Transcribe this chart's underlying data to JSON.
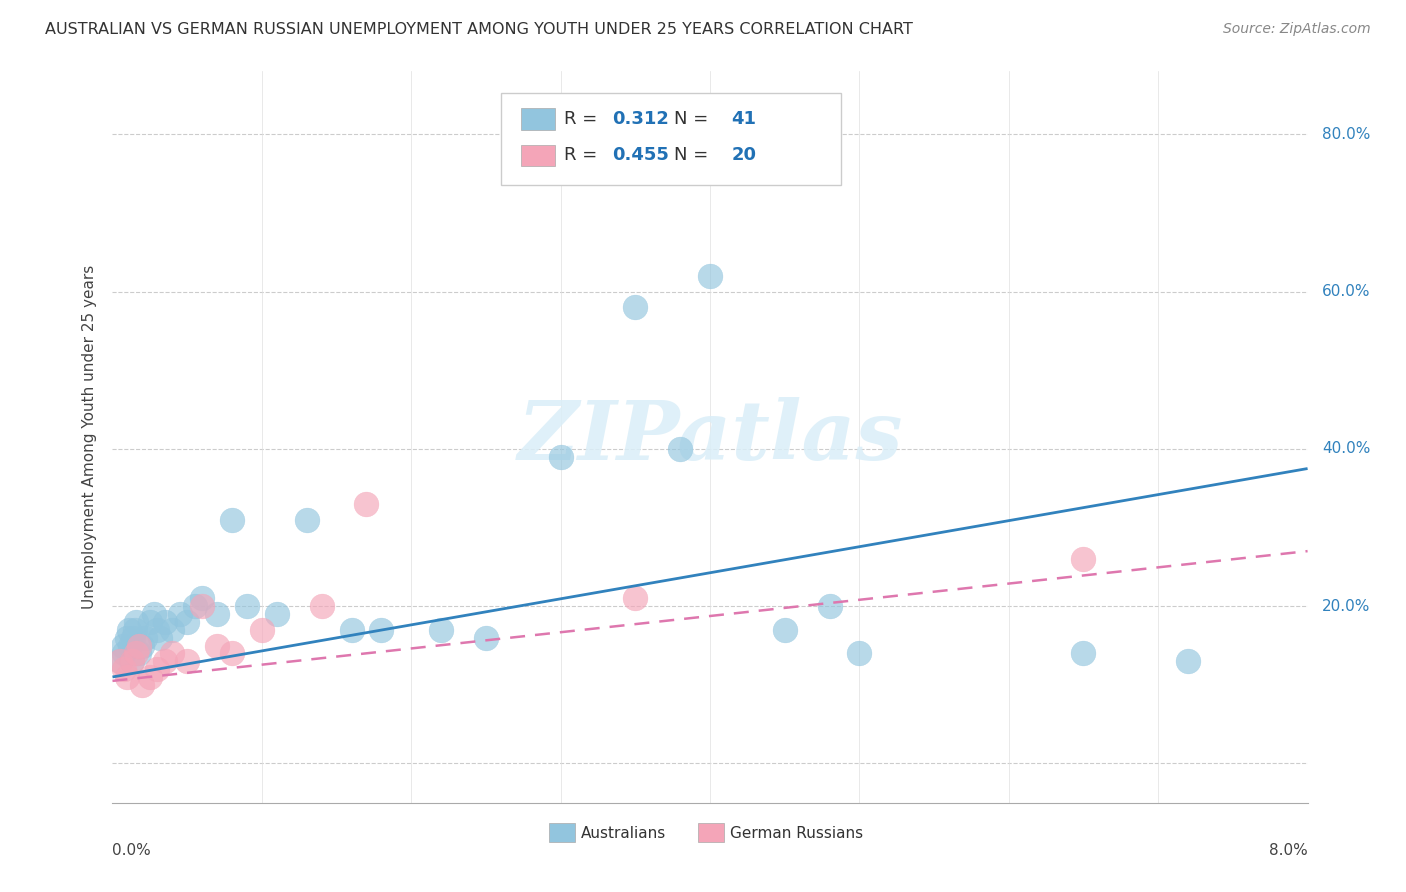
{
  "title": "AUSTRALIAN VS GERMAN RUSSIAN UNEMPLOYMENT AMONG YOUTH UNDER 25 YEARS CORRELATION CHART",
  "source": "Source: ZipAtlas.com",
  "ylabel": "Unemployment Among Youth under 25 years",
  "blue_color": "#92c5de",
  "pink_color": "#f4a5b8",
  "blue_line_color": "#3182bd",
  "pink_line_color": "#de77ae",
  "watermark_color": "#daeef8",
  "aus_x": [
    0.05,
    0.07,
    0.08,
    0.1,
    0.11,
    0.12,
    0.13,
    0.14,
    0.15,
    0.16,
    0.18,
    0.2,
    0.22,
    0.25,
    0.28,
    0.3,
    0.32,
    0.35,
    0.4,
    0.45,
    0.5,
    0.55,
    0.6,
    0.7,
    0.8,
    0.9,
    1.1,
    1.3,
    1.6,
    1.8,
    2.2,
    2.5,
    3.0,
    3.5,
    3.8,
    4.0,
    4.5,
    4.8,
    5.0,
    6.5,
    7.2
  ],
  "aus_y": [
    13,
    15,
    14,
    16,
    17,
    15,
    13,
    16,
    17,
    18,
    14,
    15,
    16,
    18,
    19,
    17,
    16,
    18,
    17,
    19,
    18,
    20,
    21,
    19,
    31,
    20,
    19,
    31,
    17,
    17,
    17,
    16,
    39,
    58,
    40,
    62,
    17,
    20,
    14,
    14,
    13
  ],
  "ger_x": [
    0.05,
    0.08,
    0.1,
    0.13,
    0.16,
    0.18,
    0.2,
    0.25,
    0.3,
    0.35,
    0.4,
    0.5,
    0.6,
    0.7,
    0.8,
    1.0,
    1.4,
    1.7,
    3.5,
    6.5
  ],
  "ger_y": [
    13,
    12,
    11,
    13,
    14,
    15,
    10,
    11,
    12,
    13,
    14,
    13,
    20,
    15,
    14,
    17,
    20,
    33,
    21,
    26
  ],
  "aus_trend": [
    11.0,
    37.5
  ],
  "ger_trend": [
    10.5,
    27.0
  ],
  "xlim": [
    0.0,
    8.0
  ],
  "ylim": [
    -5.0,
    88.0
  ],
  "ytick_vals": [
    0,
    20,
    40,
    60,
    80
  ],
  "ytick_labels": [
    "",
    "20.0%",
    "40.0%",
    "60.0%",
    "80.0%"
  ]
}
